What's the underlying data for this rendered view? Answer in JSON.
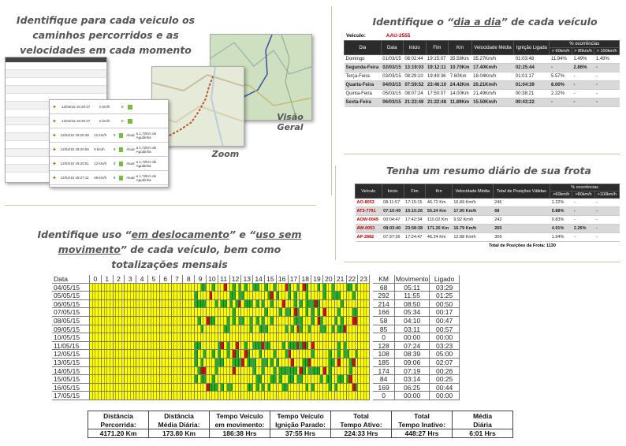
{
  "captions": {
    "top_left": "Identifique para cada veiculo os caminhos percorridos e as velocidades em cada momento",
    "top_right_pre": "Identifique o “",
    "top_right_u": "dia a dia",
    "top_right_post": "” de cada veículo",
    "mid_right": "Tenha um resumo diário de sua frota",
    "bottom_l1_pre": "Identifique uso “",
    "bottom_l1_u1": "em deslocamento",
    "bottom_l1_mid": "” e “",
    "bottom_l1_u2": "uso sem",
    "bottom_l2_u": "movimento",
    "bottom_l2_post": "” de cada veículo, bem como",
    "bottom_l3": "totalizações mensais",
    "zoom": "Zoom",
    "visao": "Visão",
    "geral": "Geral"
  },
  "colors": {
    "yellow": "#ffff00",
    "green": "#21b021",
    "red": "#cc1111",
    "header": "#2b2b2b"
  },
  "vehicle_table": {
    "vehicle_label": "Veiculo:",
    "plate": "AAU-2555",
    "headers": [
      "Dia",
      "Data",
      "Inicio",
      "Fim",
      "Km",
      "Velocidade Média",
      "Ignição Ligada",
      "% ocorrências"
    ],
    "sub_headers": [
      "> 60km/h",
      "> 80km/h",
      "> 100km/h"
    ],
    "rows": [
      [
        "Domingo",
        "01/03/15",
        "08:02:44",
        "19:15:07",
        "35.58Km",
        "35.27Km/h",
        "01:03:48",
        "11.94%",
        "1.49%",
        "1.49%"
      ],
      [
        "Segunda-Feira",
        "02/03/15",
        "13:19:03",
        "19:12:11",
        "10.70Km",
        "17.40Km/h",
        "02:25:44",
        "-",
        "2.86%",
        "-"
      ],
      [
        "Terça-Feira",
        "03/03/15",
        "08:29:10",
        "19:49:36",
        "7.60Km",
        "18.04Km/h",
        "01:01:17",
        "5.57%",
        "-",
        "-"
      ],
      [
        "Quarta-Feira",
        "04/03/15",
        "07:59:52",
        "23:46:10",
        "24.42Km",
        "20.21Km/h",
        "01:04:39",
        "8.00%",
        "-",
        "-"
      ],
      [
        "Quinta-Feira",
        "05/03/15",
        "08:07:24",
        "17:50:07",
        "14.00Km",
        "21.49Km/h",
        "00:38:21",
        "2.22%",
        "-",
        "-"
      ],
      [
        "Sexta-Feira",
        "06/03/15",
        "21:22:48",
        "21:22:48",
        "11.89Km",
        "15.50Km/h",
        "00:43:22",
        "-",
        "-",
        "-"
      ]
    ]
  },
  "fleet_table": {
    "headers": [
      "Veículo",
      "Inicio",
      "Fim",
      "Km",
      "Velocidade Média",
      "Total de Posições Válidas",
      "% ocorrências"
    ],
    "sub_headers": [
      ">60km/h",
      ">80km/h",
      ">100km/h"
    ],
    "rows": [
      [
        "AO-8053",
        "08:11:57",
        "17:15:15",
        "46.72 Km",
        "16.89 Km/h",
        "246",
        "1.22%",
        "-",
        "-"
      ],
      [
        "AT3-7791",
        "07:10:49",
        "15:10:26",
        "55.24 Km",
        "17.90 Km/h",
        "68",
        "5.88%",
        "-",
        "-"
      ],
      [
        "AOW-0049",
        "00:04:47",
        "17:42:34",
        "110.02 Km",
        "9.92 Km/h",
        "242",
        "0.83%",
        "-",
        "-"
      ],
      [
        "AW-0053",
        "08:03:40",
        "23:58:38",
        "171.26 Km",
        "16.79 Km/h",
        "265",
        "4.91%",
        "2.26%",
        "-"
      ],
      [
        "AP-2882",
        "07:37:36",
        "17:24:47",
        "46.24 Km",
        "12.88 Km/h",
        "309",
        "1.94%",
        "-",
        "-"
      ]
    ],
    "footer": "Total de Posições da Frota: 1130"
  },
  "front_list": {
    "rows": [
      [
        "12/04/15 19:20:47",
        "0 km/h",
        "0"
      ],
      [
        "12/04/15 19:20:47",
        "0 km/h",
        "0"
      ],
      [
        "12/04/15 19:20:48",
        "12 km/h",
        "0"
      ],
      [
        "12/04/15 19:20:55",
        "0 km/h",
        "0"
      ],
      [
        "12/04/15 19:20:51",
        "12 km/h",
        "0"
      ],
      [
        "12/04/15 19:27:11",
        "48 km/h",
        "0"
      ]
    ],
    "status": "Atual",
    "location": "a 1,72Km de Agudinha"
  },
  "usage_grid": {
    "header_date": "Data",
    "hours": [
      "0",
      "1",
      "2",
      "3",
      "4",
      "5",
      "6",
      "7",
      "8",
      "9",
      "10",
      "11",
      "12",
      "13",
      "14",
      "15",
      "16",
      "17",
      "18",
      "19",
      "20",
      "21",
      "22",
      "23"
    ],
    "extra_headers": [
      "KM",
      "Movimento",
      "Ligado"
    ],
    "rows": [
      {
        "date": "04/05/15",
        "km": "68",
        "mov": "05:11",
        "lig": "03:29"
      },
      {
        "date": "05/05/15",
        "km": "292",
        "mov": "11:55",
        "lig": "01:25"
      },
      {
        "date": "06/05/15",
        "km": "214",
        "mov": "08:50",
        "lig": "00:50"
      },
      {
        "date": "07/05/15",
        "km": "166",
        "mov": "05:34",
        "lig": "00:17"
      },
      {
        "date": "08/05/15",
        "km": "58",
        "mov": "04:10",
        "lig": "00:47"
      },
      {
        "date": "09/05/15",
        "km": "85",
        "mov": "03:11",
        "lig": "00:57"
      },
      {
        "date": "10/05/15",
        "km": "0",
        "mov": "00:00",
        "lig": "00:00"
      },
      {
        "date": "11/05/15",
        "km": "128",
        "mov": "07:24",
        "lig": "03:23"
      },
      {
        "date": "12/05/15",
        "km": "108",
        "mov": "08:39",
        "lig": "05:00"
      },
      {
        "date": "13/05/15",
        "km": "185",
        "mov": "09:06",
        "lig": "02:07"
      },
      {
        "date": "14/05/15",
        "km": "174",
        "mov": "07:19",
        "lig": "00:26"
      },
      {
        "date": "15/05/15",
        "km": "84",
        "mov": "03:14",
        "lig": "00:25"
      },
      {
        "date": "16/05/15",
        "km": "169",
        "mov": "06:25",
        "lig": "00:44"
      },
      {
        "date": "17/05/15",
        "km": "0",
        "mov": "00:00",
        "lig": "00:00"
      }
    ]
  },
  "totals": [
    {
      "l1": "Distância",
      "l2": "Percorrida:",
      "value": "4171.20 Km"
    },
    {
      "l1": "Distância",
      "l2": "Média Diária:",
      "value": "173.80 Km"
    },
    {
      "l1": "Tempo Veículo",
      "l2": "em movimento:",
      "value": "186:38 Hrs"
    },
    {
      "l1": "Tempo Veículo",
      "l2": "Ignição Parado:",
      "value": "37:55 Hrs"
    },
    {
      "l1": "Total",
      "l2": "Tempo Ativo:",
      "value": "224:33 Hrs"
    },
    {
      "l1": "Total",
      "l2": "Tempo Inativo:",
      "value": "448:27 Hrs"
    },
    {
      "l1": "Média",
      "l2": "Diária",
      "value": "6:01 Hrs"
    }
  ]
}
